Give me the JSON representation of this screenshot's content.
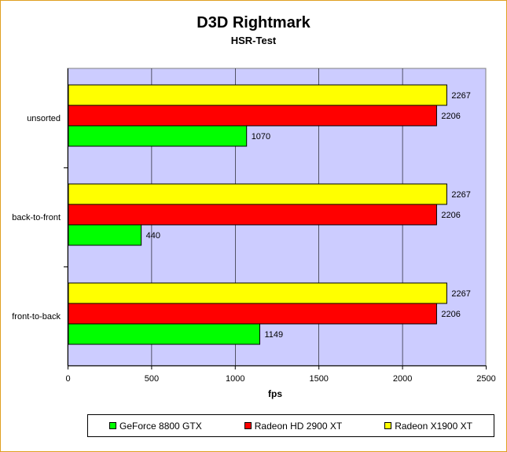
{
  "chart_data": {
    "type": "bar",
    "orientation": "horizontal",
    "title": "D3D Rightmark",
    "subtitle": "HSR-Test",
    "xlabel": "fps",
    "ylabel": "",
    "xlim": [
      0,
      2500
    ],
    "xticks": [
      0,
      500,
      1000,
      1500,
      2000,
      2500
    ],
    "grid": true,
    "legend_position": "bottom",
    "plot_background": "#ccccff",
    "categories": [
      "unsorted",
      "back-to-front",
      "front-to-back"
    ],
    "series": [
      {
        "name": "Radeon X1900 XT",
        "color": "#ffff00",
        "values": [
          2267,
          2267,
          2267
        ]
      },
      {
        "name": "Radeon HD 2900 XT",
        "color": "#ff0000",
        "values": [
          2206,
          2206,
          2206
        ]
      },
      {
        "name": "GeForce 8800 GTX",
        "color": "#00ff00",
        "values": [
          1070,
          440,
          1149
        ]
      }
    ],
    "legend_order": [
      "GeForce 8800 GTX",
      "Radeon HD 2900 XT",
      "Radeon X1900 XT"
    ]
  }
}
